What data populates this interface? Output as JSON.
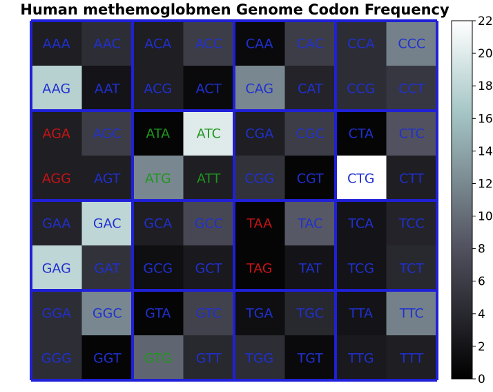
{
  "chart_data": {
    "type": "heatmap",
    "title": "Human methemoglobmen Genome Codon Frequency",
    "xlabel": "",
    "ylabel": "",
    "grid": true,
    "legend": "colorbar-right",
    "colorbar": {
      "min": 0,
      "max": 22,
      "ticks": [
        0,
        2,
        4,
        6,
        8,
        10,
        12,
        14,
        16,
        18,
        20,
        22
      ]
    },
    "colormap": "bone",
    "colors": {
      "grid": "#2020d8",
      "stop": "#c81414",
      "start": "#1e961e",
      "codon": "#2030d0"
    },
    "rows": [
      [
        {
          "codon": "AAA",
          "value": 3.0,
          "group": "codon"
        },
        {
          "codon": "AAC",
          "value": 4.5,
          "group": "codon"
        },
        {
          "codon": "ACA",
          "value": 3.0,
          "group": "codon"
        },
        {
          "codon": "ACC",
          "value": 6.0,
          "group": "codon"
        },
        {
          "codon": "CAA",
          "value": 1.0,
          "group": "codon"
        },
        {
          "codon": "CAC",
          "value": 6.0,
          "group": "codon"
        },
        {
          "codon": "CCA",
          "value": 4.5,
          "group": "codon"
        },
        {
          "codon": "CCC",
          "value": 11.5,
          "group": "codon"
        }
      ],
      [
        {
          "codon": "AAG",
          "value": 17.5,
          "group": "codon"
        },
        {
          "codon": "AAT",
          "value": 2.0,
          "group": "codon"
        },
        {
          "codon": "ACG",
          "value": 3.0,
          "group": "codon"
        },
        {
          "codon": "ACT",
          "value": 1.0,
          "group": "codon"
        },
        {
          "codon": "CAG",
          "value": 12.0,
          "group": "codon"
        },
        {
          "codon": "CAT",
          "value": 3.5,
          "group": "codon"
        },
        {
          "codon": "CCG",
          "value": 4.5,
          "group": "codon"
        },
        {
          "codon": "CCT",
          "value": 5.5,
          "group": "codon"
        }
      ],
      [
        {
          "codon": "AGA",
          "value": 3.0,
          "group": "stop"
        },
        {
          "codon": "AGC",
          "value": 6.0,
          "group": "codon"
        },
        {
          "codon": "ATA",
          "value": 0.5,
          "group": "start"
        },
        {
          "codon": "ATC",
          "value": 20.0,
          "group": "start"
        },
        {
          "codon": "CGA",
          "value": 3.0,
          "group": "codon"
        },
        {
          "codon": "CGC",
          "value": 6.0,
          "group": "codon"
        },
        {
          "codon": "CTA",
          "value": 0.5,
          "group": "codon"
        },
        {
          "codon": "CTC",
          "value": 8.0,
          "group": "codon"
        }
      ],
      [
        {
          "codon": "AGG",
          "value": 3.0,
          "group": "stop"
        },
        {
          "codon": "AGT",
          "value": 3.0,
          "group": "codon"
        },
        {
          "codon": "ATG",
          "value": 12.0,
          "group": "start"
        },
        {
          "codon": "ATT",
          "value": 3.0,
          "group": "start"
        },
        {
          "codon": "CGG",
          "value": 5.0,
          "group": "codon"
        },
        {
          "codon": "CGT",
          "value": 0.5,
          "group": "codon"
        },
        {
          "codon": "CTG",
          "value": 22.0,
          "group": "codon"
        },
        {
          "codon": "CTT",
          "value": 3.0,
          "group": "codon"
        }
      ],
      [
        {
          "codon": "GAA",
          "value": 3.5,
          "group": "codon"
        },
        {
          "codon": "GAC",
          "value": 18.0,
          "group": "codon"
        },
        {
          "codon": "GCA",
          "value": 3.0,
          "group": "codon"
        },
        {
          "codon": "GCC",
          "value": 7.0,
          "group": "codon"
        },
        {
          "codon": "TAA",
          "value": 0.5,
          "group": "stop"
        },
        {
          "codon": "TAC",
          "value": 8.5,
          "group": "codon"
        },
        {
          "codon": "TCA",
          "value": 2.0,
          "group": "codon"
        },
        {
          "codon": "TCC",
          "value": 3.5,
          "group": "codon"
        }
      ],
      [
        {
          "codon": "GAG",
          "value": 18.0,
          "group": "codon"
        },
        {
          "codon": "GAT",
          "value": 5.0,
          "group": "codon"
        },
        {
          "codon": "GCG",
          "value": 1.5,
          "group": "codon"
        },
        {
          "codon": "GCT",
          "value": 2.5,
          "group": "codon"
        },
        {
          "codon": "TAG",
          "value": 0.5,
          "group": "stop"
        },
        {
          "codon": "TAT",
          "value": 2.0,
          "group": "codon"
        },
        {
          "codon": "TCG",
          "value": 2.0,
          "group": "codon"
        },
        {
          "codon": "TCT",
          "value": 4.0,
          "group": "codon"
        }
      ],
      [
        {
          "codon": "GGA",
          "value": 4.5,
          "group": "codon"
        },
        {
          "codon": "GGC",
          "value": 12.0,
          "group": "codon"
        },
        {
          "codon": "GTA",
          "value": 0.5,
          "group": "codon"
        },
        {
          "codon": "GTC",
          "value": 6.5,
          "group": "codon"
        },
        {
          "codon": "TGA",
          "value": 1.5,
          "group": "codon"
        },
        {
          "codon": "TGC",
          "value": 4.0,
          "group": "codon"
        },
        {
          "codon": "TTA",
          "value": 2.0,
          "group": "codon"
        },
        {
          "codon": "TTC",
          "value": 11.5,
          "group": "codon"
        }
      ],
      [
        {
          "codon": "GGG",
          "value": 4.5,
          "group": "codon"
        },
        {
          "codon": "GGT",
          "value": 0.5,
          "group": "codon"
        },
        {
          "codon": "GTG",
          "value": 9.5,
          "group": "start"
        },
        {
          "codon": "GTT",
          "value": 4.0,
          "group": "codon"
        },
        {
          "codon": "TGG",
          "value": 4.5,
          "group": "codon"
        },
        {
          "codon": "TGT",
          "value": 1.0,
          "group": "codon"
        },
        {
          "codon": "TTG",
          "value": 2.5,
          "group": "codon"
        },
        {
          "codon": "TTT",
          "value": 3.0,
          "group": "codon"
        }
      ]
    ]
  }
}
